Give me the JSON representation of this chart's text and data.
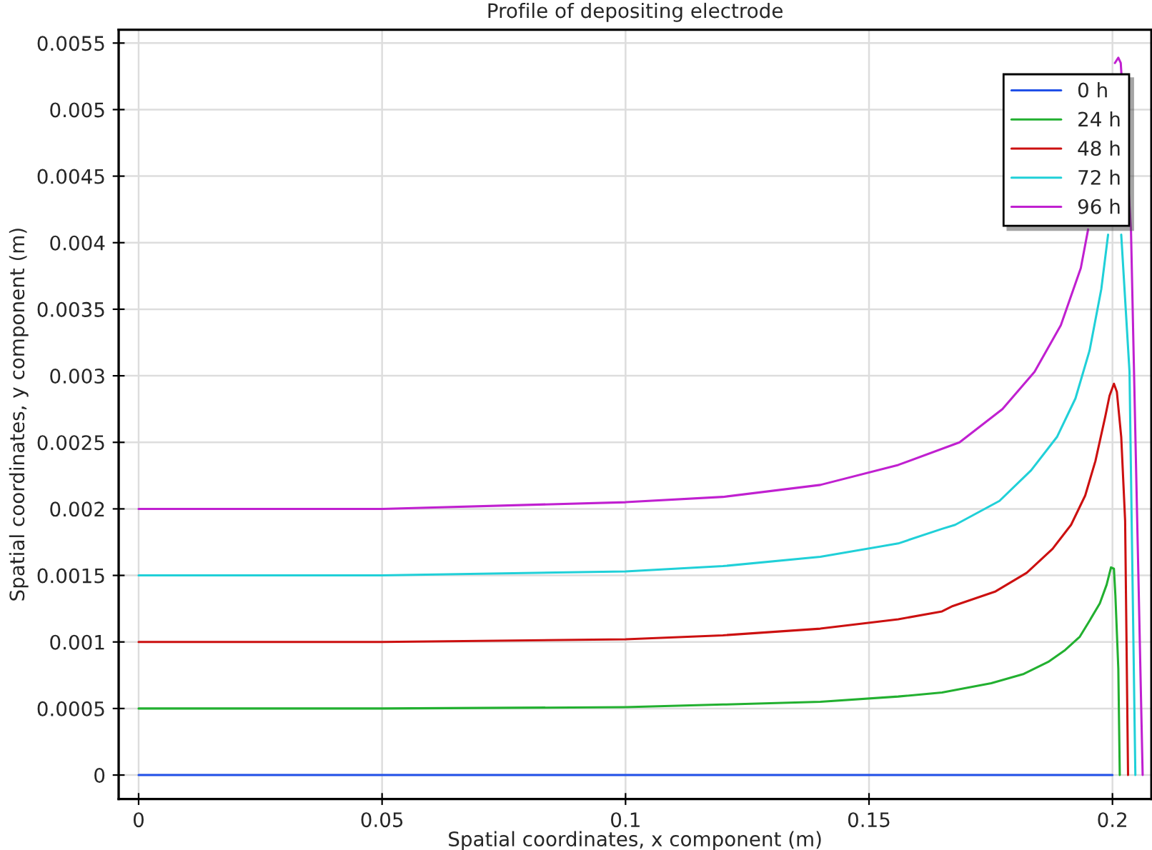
{
  "chart_data": {
    "type": "line",
    "title": "Profile of depositing electrode",
    "xlabel": "Spatial coordinates, x component (m)",
    "ylabel": "Spatial coordinates, y component (m)",
    "xlim": [
      -0.0041,
      0.208
    ],
    "ylim": [
      -0.00018,
      0.0056
    ],
    "xticks": [
      0,
      0.05,
      0.1,
      0.15,
      0.2
    ],
    "yticks": [
      0,
      0.0005,
      0.001,
      0.0015,
      0.002,
      0.0025,
      0.003,
      0.0035,
      0.004,
      0.0045,
      0.005,
      0.0055
    ],
    "grid": true,
    "legend": "top right",
    "marker": "none",
    "line_style": "solid",
    "series": [
      {
        "name": "0 h",
        "color": "#2050e8",
        "x": [
          0,
          0.1,
          0.2
        ],
        "values": [
          0,
          0,
          0
        ]
      },
      {
        "name": "24 h",
        "color": "#22b030",
        "x": [
          0,
          0.05,
          0.1,
          0.12,
          0.14,
          0.156,
          0.165,
          0.1751,
          0.1818,
          0.1868,
          0.1903,
          0.1933,
          0.1953,
          0.1974,
          0.1988,
          0.1997,
          0.2003,
          0.2006,
          0.2012,
          0.2015
        ],
        "values": [
          0.0005,
          0.0005,
          0.00051,
          0.00053,
          0.00055,
          0.00059,
          0.00062,
          0.00069,
          0.00076,
          0.00085,
          0.00094,
          0.00104,
          0.00116,
          0.00129,
          0.00143,
          0.00156,
          0.00155,
          0.00135,
          0.0008,
          0
        ]
      },
      {
        "name": "48 h",
        "color": "#cc1010",
        "x": [
          0,
          0.05,
          0.1,
          0.12,
          0.14,
          0.156,
          0.165,
          0.1672,
          0.176,
          0.1824,
          0.1877,
          0.1915,
          0.1944,
          0.1965,
          0.1985,
          0.1994,
          0.2003,
          0.2009,
          0.2018,
          0.2026,
          0.2032
        ],
        "values": [
          0.001,
          0.001,
          0.00102,
          0.00105,
          0.0011,
          0.00117,
          0.00123,
          0.00127,
          0.00138,
          0.00152,
          0.0017,
          0.00188,
          0.0021,
          0.00236,
          0.00269,
          0.00285,
          0.00294,
          0.00288,
          0.00254,
          0.00191,
          0
        ]
      },
      {
        "name": "72 h",
        "color": "#20d0d8",
        "x": [
          0,
          0.05,
          0.1,
          0.12,
          0.14,
          0.156,
          0.165,
          0.1677,
          0.1768,
          0.1833,
          0.1886,
          0.1924,
          0.1953,
          0.1977,
          0.1991,
          0.2003,
          0.2018,
          0.2035,
          0.2047
        ],
        "values": [
          0.0015,
          0.0015,
          0.00153,
          0.00157,
          0.00164,
          0.00174,
          0.00185,
          0.00188,
          0.00206,
          0.00229,
          0.00254,
          0.00283,
          0.00319,
          0.00365,
          0.00406,
          null,
          0.00406,
          0.00303,
          0
        ]
      },
      {
        "name": "96 h",
        "color": "#c020d0",
        "x": [
          0,
          0.05,
          0.1,
          0.12,
          0.14,
          0.156,
          0.1686,
          0.1774,
          0.184,
          0.1894,
          0.1935,
          0.195,
          0.198,
          0.2005,
          0.2012,
          0.2017,
          0.2038,
          0.2062
        ],
        "values": [
          0.002,
          0.002,
          0.00205,
          0.00209,
          0.00218,
          0.00233,
          0.0025,
          0.00275,
          0.00303,
          0.00338,
          0.00381,
          0.0041,
          null,
          0.00535,
          0.00539,
          0.00535,
          0.0041,
          0
        ]
      }
    ]
  }
}
